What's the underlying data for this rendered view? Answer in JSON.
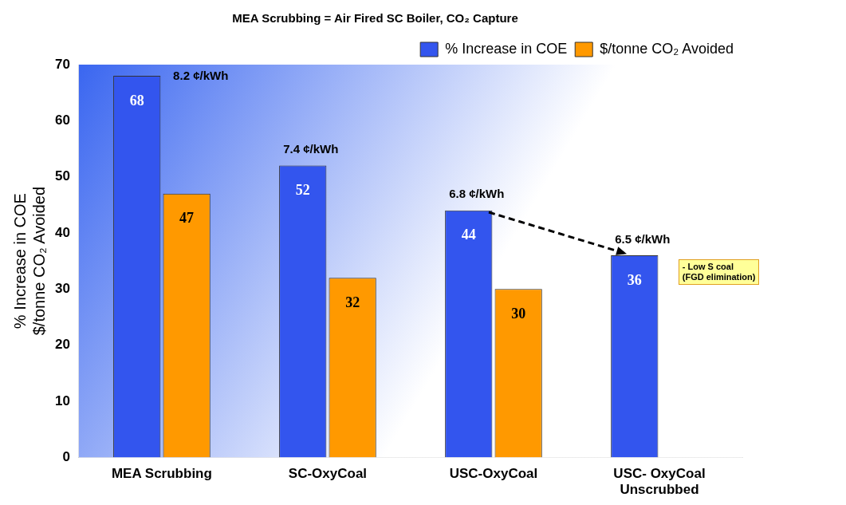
{
  "chart_data": {
    "type": "bar",
    "title": "MEA Scrubbing = Air Fired SC Boiler, CO₂ Capture",
    "ylabel": "% Increase in COE\n$/tonne CO₂ Avoided",
    "categories": [
      "MEA Scrubbing",
      "SC-OxyCoal",
      "USC-OxyCoal",
      "USC- OxyCoal\nUnscrubbed"
    ],
    "series": [
      {
        "name": "% Increase in COE",
        "color": "#3355ee",
        "values": [
          68,
          52,
          44,
          36
        ]
      },
      {
        "name": "$/tonne CO₂ Avoided",
        "color": "#ff9900",
        "values": [
          47,
          32,
          30,
          null
        ]
      }
    ],
    "ylim": [
      0,
      70
    ],
    "yticks": [
      0,
      10,
      20,
      30,
      40,
      50,
      60,
      70
    ],
    "grid": false,
    "legend": "top right",
    "data_labels": true,
    "annotations": [
      {
        "text": "8.2 ¢/kWh",
        "x": "MEA Scrubbing",
        "y": 68
      },
      {
        "text": "7.4 ¢/kWh",
        "x": "SC-OxyCoal",
        "y": 52
      },
      {
        "text": "6.8 ¢/kWh",
        "x": "USC-OxyCoal",
        "y": 44
      },
      {
        "text": "6.5 ¢/kWh",
        "x": "USC- OxyCoal\nUnscrubbed",
        "y": 36
      },
      "- Low S coal\n(FGD elimination)"
    ]
  }
}
